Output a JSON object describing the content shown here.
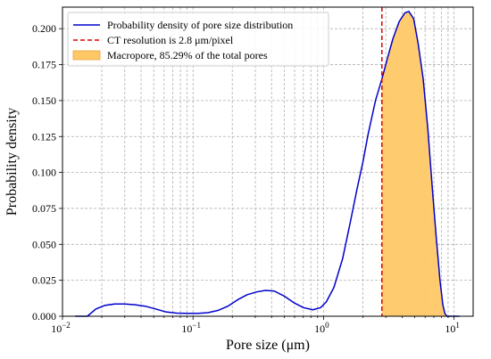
{
  "chart_data": {
    "type": "line",
    "xlabel": "Pore size (μm)",
    "ylabel": "Probability density",
    "xscale": "log",
    "xlim": [
      0.01,
      14
    ],
    "ylim": [
      0,
      0.215
    ],
    "grid": true,
    "legend_position": "top-left",
    "x_ticks": [
      0.01,
      0.1,
      1,
      10
    ],
    "x_tick_labels": [
      {
        "base": "10",
        "exp": "−2"
      },
      {
        "base": "10",
        "exp": "−1"
      },
      {
        "base": "10",
        "exp": "0"
      },
      {
        "base": "10",
        "exp": "1"
      }
    ],
    "y_ticks": [
      0,
      0.025,
      0.05,
      0.075,
      0.1,
      0.125,
      0.15,
      0.175,
      0.2
    ],
    "y_tick_labels": [
      "0.000",
      "0.025",
      "0.050",
      "0.075",
      "0.100",
      "0.125",
      "0.150",
      "0.175",
      "0.200"
    ],
    "series": [
      {
        "name": "Probability density of pore size distribution",
        "color": "#0000cc",
        "x": [
          0.0125,
          0.0155,
          0.018,
          0.021,
          0.025,
          0.03,
          0.036,
          0.043,
          0.052,
          0.062,
          0.075,
          0.09,
          0.11,
          0.13,
          0.155,
          0.185,
          0.22,
          0.26,
          0.31,
          0.36,
          0.42,
          0.5,
          0.59,
          0.7,
          0.83,
          0.95,
          1.05,
          1.2,
          1.4,
          1.6,
          1.8,
          2.0,
          2.2,
          2.5,
          2.8,
          3.1,
          3.4,
          3.8,
          4.2,
          4.5,
          4.9,
          5.3,
          5.8,
          6.3,
          6.8,
          7.3,
          7.8,
          8.2,
          8.5,
          8.8,
          9.5,
          11
        ],
        "y": [
          0,
          0,
          0.005,
          0.0075,
          0.0085,
          0.0085,
          0.008,
          0.007,
          0.005,
          0.003,
          0.0022,
          0.002,
          0.002,
          0.0025,
          0.004,
          0.007,
          0.0115,
          0.015,
          0.017,
          0.018,
          0.0175,
          0.014,
          0.0095,
          0.006,
          0.0045,
          0.006,
          0.01,
          0.02,
          0.04,
          0.065,
          0.088,
          0.107,
          0.127,
          0.15,
          0.165,
          0.18,
          0.193,
          0.205,
          0.211,
          0.212,
          0.207,
          0.19,
          0.165,
          0.13,
          0.09,
          0.055,
          0.025,
          0.008,
          0.002,
          0,
          0,
          0
        ]
      },
      {
        "name": "CT resolution is 2.8 μm/pixel",
        "color": "#dd0000",
        "x_value": 2.8
      },
      {
        "name": "Macropore, 85.29% of the total pores",
        "color": "#ffc867",
        "fill_from": 2.8
      }
    ]
  }
}
